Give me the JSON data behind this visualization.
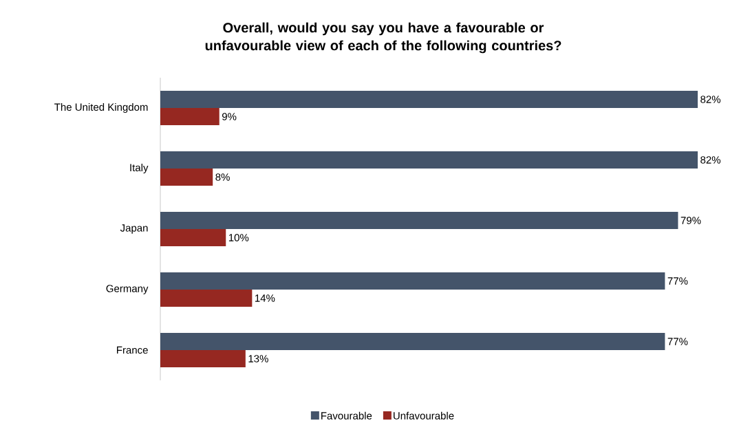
{
  "chart_data": {
    "type": "bar",
    "orientation": "horizontal",
    "title": "Overall, would you say you have a favourable or unfavourable view of each of the following countries?",
    "categories": [
      "The United Kingdom",
      "Italy",
      "Japan",
      "Germany",
      "France"
    ],
    "series": [
      {
        "name": "Favourable",
        "color": "#44546a",
        "values": [
          82,
          82,
          79,
          77,
          77
        ],
        "value_labels": [
          "82%",
          "82%",
          "79%",
          "77%",
          "77%"
        ]
      },
      {
        "name": "Unfavourable",
        "color": "#962821",
        "values": [
          9,
          8,
          10,
          14,
          13
        ],
        "value_labels": [
          "9%",
          "8%",
          "10%",
          "14%",
          "13%"
        ]
      }
    ],
    "legend": "bottom"
  }
}
